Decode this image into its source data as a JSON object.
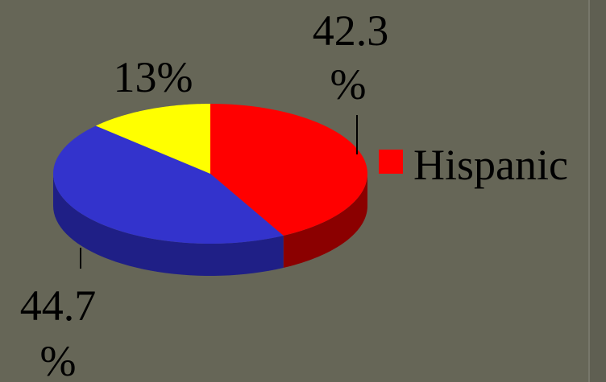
{
  "chart_data": {
    "type": "pie",
    "style": "3d-tilted",
    "slices": [
      {
        "label_lines": [
          "42.3",
          "%"
        ],
        "value": 42.3,
        "color": "#ff0000",
        "side_color": "#8b0000"
      },
      {
        "label_lines": [
          "44.7",
          "%"
        ],
        "value": 44.7,
        "color": "#3333cc",
        "side_color": "#1f1f86"
      },
      {
        "label_lines": [
          "13%"
        ],
        "value": 13,
        "color": "#ffff00",
        "side_color": "#8a8a00"
      }
    ],
    "legend": {
      "placement": "right",
      "entries": [
        {
          "name": "Hispanic",
          "color": "#ff0000"
        }
      ]
    }
  }
}
